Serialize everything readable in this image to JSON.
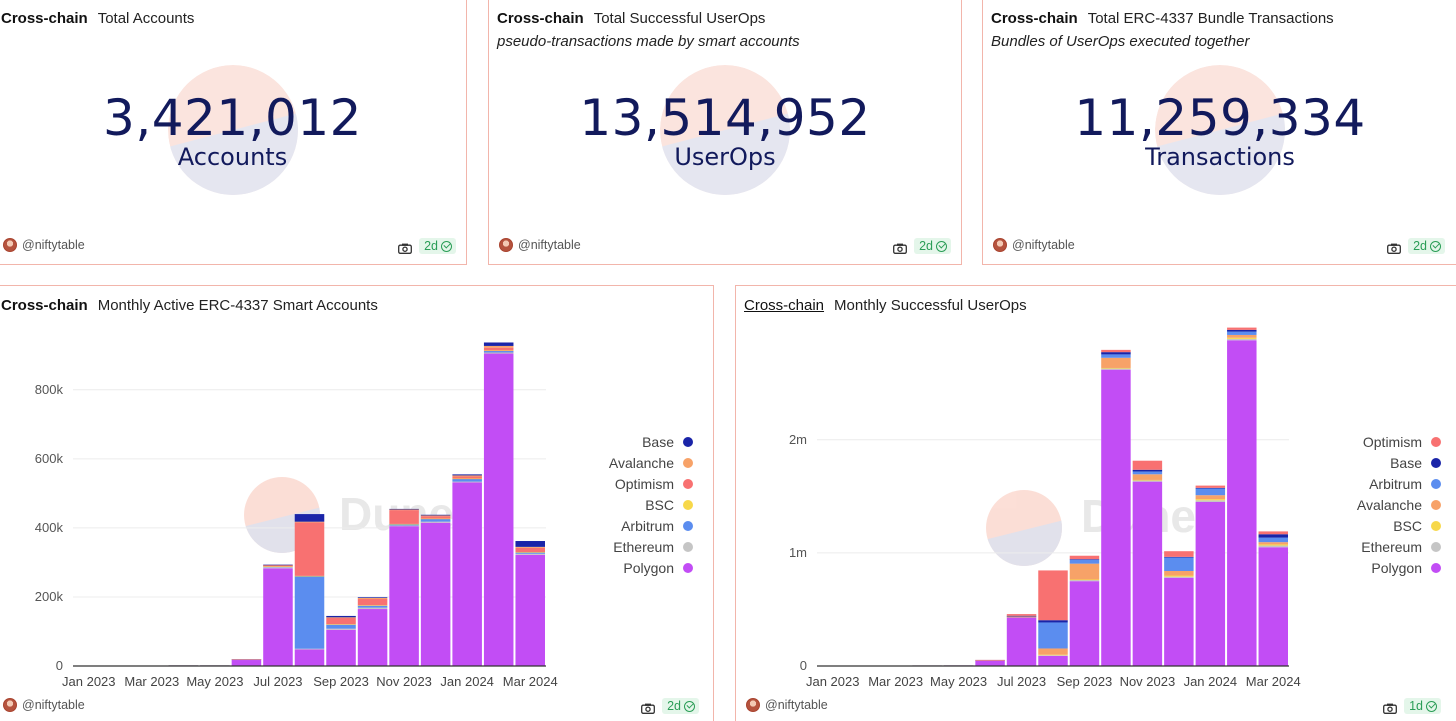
{
  "counters": [
    {
      "chain": "Cross-chain",
      "title": "Total Accounts",
      "subtitle": "",
      "value": "3,421,012",
      "unit": "Accounts",
      "author": "@niftytable",
      "age": "2d"
    },
    {
      "chain": "Cross-chain",
      "title": "Total Successful UserOps",
      "subtitle": "pseudo-transactions made by smart accounts",
      "value": "13,514,952",
      "unit": "UserOps",
      "author": "@niftytable",
      "age": "2d"
    },
    {
      "chain": "Cross-chain",
      "title": "Total ERC-4337 Bundle Transactions",
      "subtitle": "Bundles of UserOps executed together",
      "value": "11,259,334",
      "unit": "Transactions",
      "author": "@niftytable",
      "age": "2d"
    }
  ],
  "charts_meta": [
    {
      "chain": "Cross-chain",
      "title": "Monthly Active ERC-4337 Smart Accounts",
      "author": "@niftytable",
      "age": "2d",
      "watermark": "Dune"
    },
    {
      "chain": "Cross-chain",
      "title": "Monthly Successful UserOps",
      "author": "@niftytable",
      "age": "1d",
      "watermark": "Dune"
    }
  ],
  "icons": {
    "camera": "camera-icon",
    "check": "check-circle-icon",
    "avatar": "user-avatar"
  },
  "colors": {
    "Base": "#1a24a8",
    "Avalanche": "#f7a268",
    "Optimism": "#f87171",
    "BSC": "#f7d84a",
    "Arbitrum": "#5b8def",
    "Ethereum": "#c5c5c5",
    "Polygon": "#c24df5",
    "number": "#121a5c",
    "border": "#f2b5ab"
  },
  "chart_data": [
    {
      "type": "bar",
      "stacked": true,
      "title": "Monthly Active ERC-4337 Smart Accounts",
      "categories": [
        "Jan 2023",
        "Feb 2023",
        "Mar 2023",
        "Apr 2023",
        "May 2023",
        "Jun 2023",
        "Jul 2023",
        "Aug 2023",
        "Sep 2023",
        "Oct 2023",
        "Nov 2023",
        "Dec 2023",
        "Jan 2024",
        "Feb 2024",
        "Mar 2024"
      ],
      "xtick_labels": [
        "Jan 2023",
        "Mar 2023",
        "May 2023",
        "Jul 2023",
        "Sep 2023",
        "Nov 2023",
        "Jan 2024",
        "Mar 2024"
      ],
      "yticks": [
        0,
        200000,
        400000,
        600000,
        800000
      ],
      "ytick_labels": [
        "0",
        "200k",
        "400k",
        "600k",
        "800k"
      ],
      "ylim": [
        0,
        950000
      ],
      "grid": true,
      "legend_position": "right",
      "legend": [
        "Base",
        "Avalanche",
        "Optimism",
        "BSC",
        "Arbitrum",
        "Ethereum",
        "Polygon"
      ],
      "series": [
        {
          "name": "Polygon",
          "values": [
            1000,
            1000,
            1000,
            2000,
            2000,
            18000,
            283000,
            48000,
            105000,
            165000,
            405000,
            415000,
            532000,
            905000,
            322000
          ]
        },
        {
          "name": "Ethereum",
          "values": [
            500,
            500,
            500,
            500,
            500,
            1000,
            3000,
            2000,
            3000,
            4000,
            2000,
            3000,
            2000,
            3000,
            3000
          ]
        },
        {
          "name": "Arbitrum",
          "values": [
            0,
            0,
            0,
            0,
            0,
            500,
            2000,
            210000,
            12000,
            6000,
            4000,
            8000,
            8000,
            5000,
            4000
          ]
        },
        {
          "name": "BSC",
          "values": [
            0,
            0,
            0,
            0,
            0,
            0,
            500,
            1000,
            1000,
            1000,
            500,
            1000,
            1000,
            1000,
            1000
          ]
        },
        {
          "name": "Optimism",
          "values": [
            0,
            0,
            0,
            0,
            0,
            500,
            4000,
            155000,
            18000,
            18000,
            40000,
            7000,
            6000,
            8000,
            12000
          ]
        },
        {
          "name": "Avalanche",
          "values": [
            0,
            0,
            0,
            0,
            0,
            0,
            500,
            2000,
            2000,
            3000,
            2000,
            2000,
            3000,
            5000,
            3000
          ]
        },
        {
          "name": "Base",
          "values": [
            0,
            0,
            0,
            0,
            0,
            0,
            500,
            22000,
            4000,
            2000,
            1500,
            2000,
            3000,
            10000,
            17000
          ]
        }
      ]
    },
    {
      "type": "bar",
      "stacked": true,
      "title": "Monthly Successful UserOps",
      "categories": [
        "Jan 2023",
        "Feb 2023",
        "Mar 2023",
        "Apr 2023",
        "May 2023",
        "Jun 2023",
        "Jul 2023",
        "Aug 2023",
        "Sep 2023",
        "Oct 2023",
        "Nov 2023",
        "Dec 2023",
        "Jan 2024",
        "Feb 2024",
        "Mar 2024"
      ],
      "xtick_labels": [
        "Jan 2023",
        "Mar 2023",
        "May 2023",
        "Jul 2023",
        "Sep 2023",
        "Nov 2023",
        "Jan 2024",
        "Mar 2024"
      ],
      "yticks": [
        0,
        1000000,
        2000000
      ],
      "ytick_labels": [
        "0",
        "1m",
        "2m"
      ],
      "ylim": [
        0,
        2900000
      ],
      "grid": true,
      "legend_position": "right",
      "legend": [
        "Optimism",
        "Base",
        "Arbitrum",
        "Avalanche",
        "BSC",
        "Ethereum",
        "Polygon"
      ],
      "series": [
        {
          "name": "Polygon",
          "values": [
            2000,
            3000,
            3000,
            5000,
            6000,
            50000,
            430000,
            90000,
            750000,
            2620000,
            1630000,
            780000,
            1450000,
            2880000,
            1050000
          ]
        },
        {
          "name": "Ethereum",
          "values": [
            1000,
            1000,
            1000,
            1000,
            1000,
            2000,
            5000,
            5000,
            10000,
            10000,
            10000,
            10000,
            15000,
            12000,
            15000
          ]
        },
        {
          "name": "BSC",
          "values": [
            0,
            0,
            0,
            0,
            0,
            0,
            1000,
            5000,
            5000,
            5000,
            5000,
            10000,
            10000,
            10000,
            10000
          ]
        },
        {
          "name": "Avalanche",
          "values": [
            0,
            0,
            0,
            0,
            0,
            1000,
            2000,
            55000,
            140000,
            90000,
            50000,
            40000,
            35000,
            25000,
            20000
          ]
        },
        {
          "name": "Arbitrum",
          "values": [
            0,
            0,
            0,
            0,
            0,
            500,
            5000,
            230000,
            35000,
            30000,
            25000,
            120000,
            60000,
            30000,
            40000
          ]
        },
        {
          "name": "Base",
          "values": [
            0,
            0,
            0,
            0,
            0,
            0,
            1000,
            20000,
            5000,
            20000,
            15000,
            5000,
            5000,
            15000,
            30000
          ]
        },
        {
          "name": "Optimism",
          "values": [
            0,
            0,
            0,
            0,
            0,
            500,
            15000,
            440000,
            30000,
            20000,
            80000,
            50000,
            20000,
            20000,
            25000
          ]
        }
      ]
    }
  ]
}
